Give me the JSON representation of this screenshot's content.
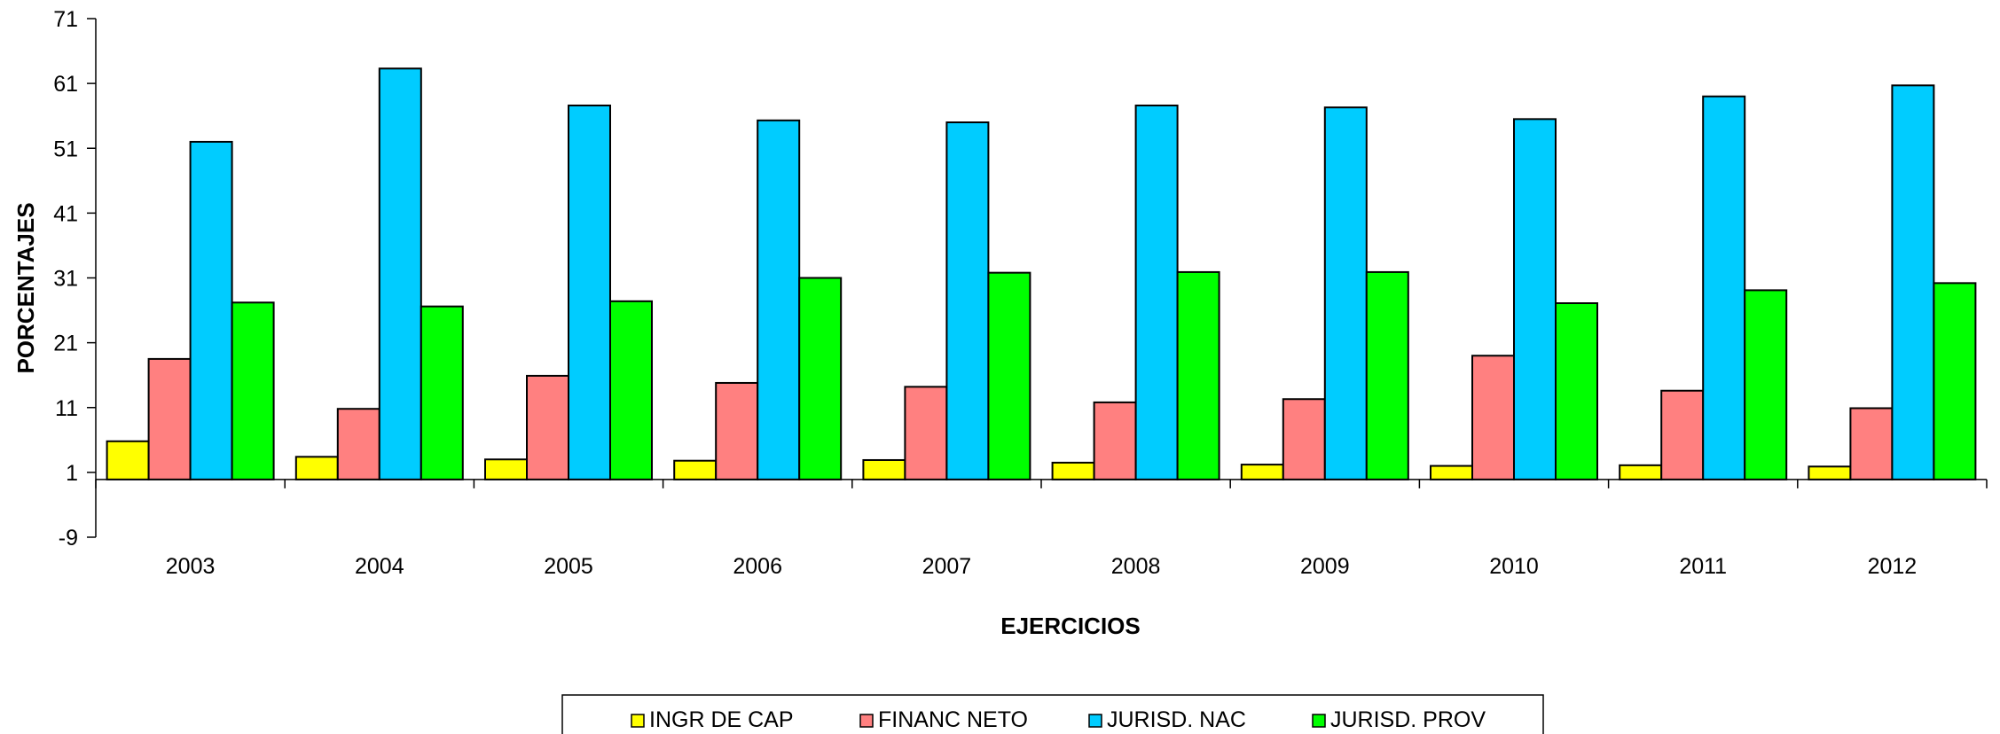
{
  "chart_data": {
    "type": "bar",
    "title": "",
    "xlabel": "EJERCICIOS",
    "ylabel": "PORCENTAJES",
    "ylim": [
      -9,
      71
    ],
    "yticks": [
      -9,
      1,
      11,
      21,
      31,
      41,
      51,
      61,
      71
    ],
    "grid": false,
    "legend_position": "bottom",
    "categories": [
      "2003",
      "2004",
      "2005",
      "2006",
      "2007",
      "2008",
      "2009",
      "2010",
      "2011",
      "2012"
    ],
    "series": [
      {
        "name": "INGR DE CAP",
        "color": "#FFFF00",
        "values": [
          5.8,
          3.4,
          3.0,
          2.8,
          2.9,
          2.5,
          2.2,
          2.0,
          2.1,
          1.9
        ]
      },
      {
        "name": "FINANC NETO",
        "color": "#FF8080",
        "values": [
          18.5,
          10.8,
          15.9,
          14.8,
          14.2,
          11.8,
          12.3,
          19.0,
          13.6,
          10.9
        ]
      },
      {
        "name": "JURISD. NAC",
        "color": "#00CCFF",
        "values": [
          52.0,
          63.3,
          57.6,
          55.3,
          55.0,
          57.6,
          57.3,
          55.5,
          59.0,
          60.7
        ]
      },
      {
        "name": "JURISD. PROV",
        "color": "#00FF00",
        "values": [
          27.2,
          26.6,
          27.4,
          31.0,
          31.8,
          31.9,
          31.9,
          27.1,
          29.1,
          30.2
        ]
      }
    ]
  }
}
